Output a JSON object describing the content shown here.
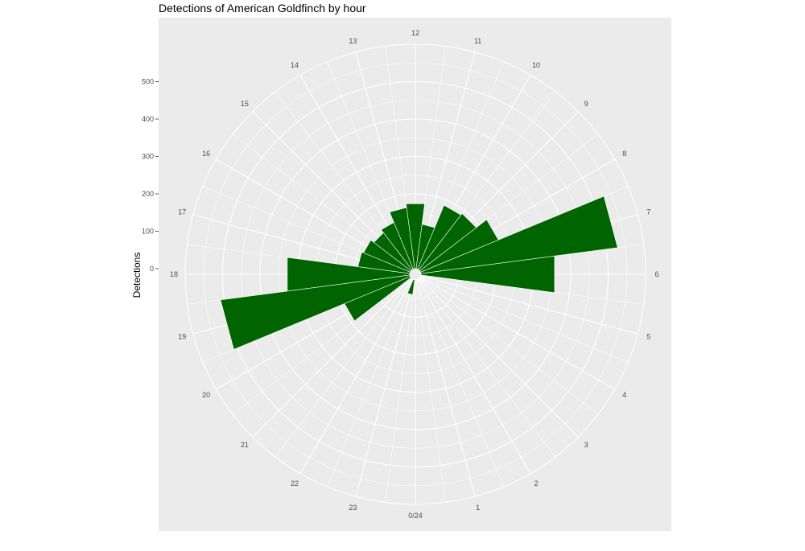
{
  "chart_data": {
    "type": "bar",
    "coord": "polar",
    "title": "Detections of American Goldfinch by hour",
    "ylabel": "Detections",
    "xlabel": "",
    "categories": [
      "0/24",
      "1",
      "2",
      "3",
      "4",
      "5",
      "6",
      "7",
      "8",
      "9",
      "10",
      "11",
      "12",
      "13",
      "14",
      "15",
      "16",
      "17",
      "18",
      "19",
      "20",
      "21",
      "22",
      "23"
    ],
    "values": [
      0,
      0,
      0,
      0,
      0,
      0,
      360,
      530,
      225,
      190,
      185,
      120,
      175,
      165,
      135,
      125,
      135,
      140,
      330,
      510,
      190,
      0,
      0,
      40
    ],
    "y_ticks": [
      0,
      100,
      200,
      300,
      400,
      500
    ],
    "ylim": [
      0,
      600
    ],
    "bar_color": "#006400",
    "panel_color": "#ebebeb",
    "grid_color": "#ffffff"
  }
}
